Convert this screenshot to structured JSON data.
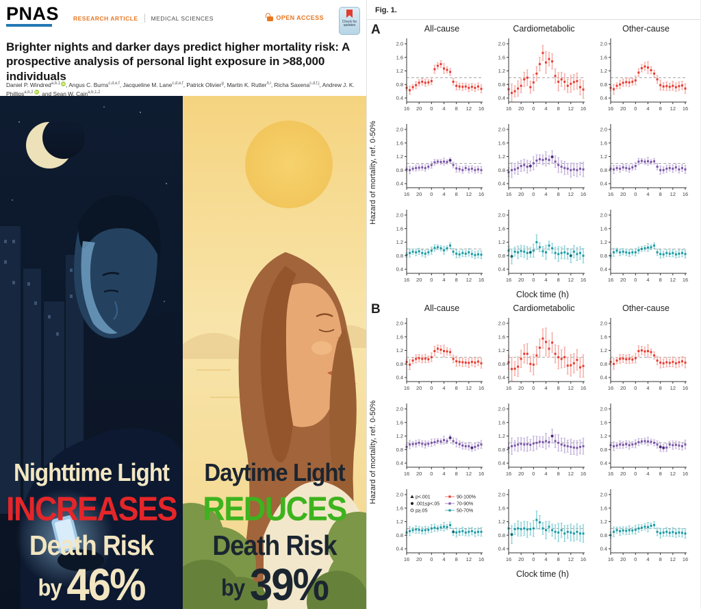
{
  "header": {
    "brand": "PNAS",
    "article_type": "RESEARCH ARTICLE",
    "section": "MEDICAL SCIENCES",
    "open_access": "OPEN ACCESS",
    "check_updates": "Check for updates"
  },
  "title": "Brighter nights and darker days predict higher mortality risk: A prospective analysis of personal light exposure in >88,000 individuals",
  "authors": [
    {
      "name": "Daniel P. Windred",
      "sup": "a,b,1",
      "orcid": true
    },
    {
      "name": "Angus C. Burns",
      "sup": "c,d,e,f"
    },
    {
      "name": "Jacqueline M. Lane",
      "sup": "c,d,e,f"
    },
    {
      "name": "Patrick Olivier",
      "sup": "g"
    },
    {
      "name": "Martin K. Rutter",
      "sup": "h,i"
    },
    {
      "name": "Richa Saxena",
      "sup": "c,d,f,j"
    },
    {
      "name": "Andrew J. K. Phillips",
      "sup": "a,b,2",
      "orcid": true
    },
    {
      "name": "Sean W. Cain",
      "sup": "a,b,1,2",
      "prefix": "and "
    }
  ],
  "infographic": {
    "night": {
      "line1": "Nighttime Light",
      "line2": "INCREASES",
      "line3": "Death Risk",
      "line4_prefix": "by ",
      "line4_value": "46%",
      "text_color": "#f2e6c2",
      "accent_color": "#e52629"
    },
    "day": {
      "line1": "Daytime Light",
      "line2": "REDUCES",
      "line3": "Death Risk",
      "line4_prefix": "by ",
      "line4_value": "39%",
      "text_color": "#1b2530",
      "accent_color": "#3db31e"
    }
  },
  "figure": {
    "label": "Fig. 1."
  },
  "chart_data": {
    "type": "scatter",
    "xlabel": "Clock time (h)",
    "ylabel": "Hazard of mortality, ref. 0-50%",
    "col_titles": [
      "All-cause",
      "Cardiometabolic",
      "Other-cause"
    ],
    "x_start": 16,
    "x_step": 1,
    "xticks": {
      "positions": [
        16,
        20,
        24,
        28,
        32,
        36,
        40
      ],
      "labels": [
        "16",
        "20",
        "0",
        "4",
        "8",
        "12",
        "16"
      ]
    },
    "yticks": [
      0.4,
      0.8,
      1.2,
      1.6,
      2.0
    ],
    "ylim": [
      0.28,
      2.12
    ],
    "ref_line": 1.0,
    "band_colors": {
      "90-100%": {
        "main": "#e93b31",
        "light": "#f6aca6",
        "dark": "#b0201c"
      },
      "70-90%": {
        "main": "#7a57a8",
        "light": "#c7b5de",
        "dark": "#492a78"
      },
      "50-70%": {
        "main": "#1d9aa3",
        "light": "#8fd3d8",
        "dark": "#0e6b74"
      }
    },
    "legend": {
      "shapes": [
        {
          "glyph": "triangle",
          "label": "p<.001"
        },
        {
          "glyph": "filled-circle",
          "label": ".001≤p<.05"
        },
        {
          "glyph": "open-circle",
          "label": "p≥.05"
        }
      ],
      "bands": [
        {
          "label": "90-100%"
        },
        {
          "label": "70-90%"
        },
        {
          "label": "50-70%"
        }
      ]
    },
    "panels": [
      {
        "label": "A",
        "rows": [
          {
            "band": "90-100%",
            "cells": [
              {
                "title": "All-cause",
                "err": 0.1,
                "values": [
                  0.7,
                  0.63,
                  0.72,
                  0.78,
                  0.85,
                  0.88,
                  0.85,
                  0.86,
                  0.9,
                  1.25,
                  1.35,
                  1.4,
                  1.27,
                  1.23,
                  1.17,
                  0.88,
                  0.76,
                  0.74,
                  0.73,
                  0.74,
                  0.7,
                  0.73,
                  0.7,
                  0.74,
                  0.67
                ]
              },
              {
                "title": "Cardiometabolic",
                "err": 0.22,
                "values": [
                  0.66,
                  0.55,
                  0.6,
                  0.68,
                  0.76,
                  0.95,
                  1.0,
                  0.72,
                  0.86,
                  1.12,
                  1.4,
                  1.73,
                  1.45,
                  1.55,
                  1.48,
                  1.05,
                  0.88,
                  0.95,
                  0.88,
                  0.76,
                  0.82,
                  0.87,
                  0.9,
                  0.72,
                  0.65
                ]
              },
              {
                "title": "Other-cause",
                "err": 0.12,
                "values": [
                  0.7,
                  0.66,
                  0.76,
                  0.8,
                  0.85,
                  0.87,
                  0.86,
                  0.88,
                  0.92,
                  1.15,
                  1.28,
                  1.33,
                  1.3,
                  1.22,
                  1.12,
                  0.95,
                  0.78,
                  0.74,
                  0.75,
                  0.73,
                  0.76,
                  0.72,
                  0.75,
                  0.77,
                  0.68
                ]
              }
            ]
          },
          {
            "band": "70-90%",
            "cells": [
              {
                "title": "All-cause",
                "err": 0.09,
                "dark": [
                  14
                ],
                "values": [
                  0.82,
                  0.8,
                  0.84,
                  0.86,
                  0.87,
                  0.88,
                  0.86,
                  0.9,
                  0.95,
                  1.03,
                  1.05,
                  1.04,
                  1.05,
                  1.04,
                  1.09,
                  0.95,
                  0.85,
                  0.83,
                  0.8,
                  0.86,
                  0.82,
                  0.84,
                  0.8,
                  0.82,
                  0.8
                ]
              },
              {
                "title": "Cardiometabolic",
                "err": 0.18,
                "dark": [
                  7,
                  14
                ],
                "values": [
                  0.74,
                  0.8,
                  0.82,
                  0.86,
                  0.92,
                  0.95,
                  0.9,
                  0.92,
                  1.0,
                  1.08,
                  1.12,
                  1.1,
                  1.13,
                  1.1,
                  1.19,
                  1.05,
                  0.95,
                  0.9,
                  0.86,
                  0.84,
                  0.8,
                  0.82,
                  0.8,
                  0.84,
                  0.82
                ]
              },
              {
                "title": "Other-cause",
                "err": 0.1,
                "values": [
                  0.84,
                  0.82,
                  0.86,
                  0.84,
                  0.88,
                  0.86,
                  0.84,
                  0.88,
                  0.92,
                  1.05,
                  1.07,
                  1.05,
                  1.06,
                  1.04,
                  1.06,
                  0.9,
                  0.8,
                  0.8,
                  0.84,
                  0.86,
                  0.84,
                  0.88,
                  0.82,
                  0.86,
                  0.82
                ]
              }
            ]
          },
          {
            "band": "50-70%",
            "cells": [
              {
                "title": "All-cause",
                "err": 0.1,
                "values": [
                  0.83,
                  0.88,
                  0.92,
                  0.9,
                  0.93,
                  0.88,
                  0.86,
                  0.9,
                  0.95,
                  1.03,
                  1.05,
                  1.02,
                  0.96,
                  1.02,
                  1.1,
                  0.92,
                  0.86,
                  0.84,
                  0.88,
                  0.86,
                  0.9,
                  0.85,
                  0.82,
                  0.84,
                  0.83
                ]
              },
              {
                "title": "Cardiometabolic",
                "err": 0.18,
                "dark": [
                  1,
                  7,
                  20
                ],
                "values": [
                  0.95,
                  0.78,
                  0.92,
                  0.9,
                  0.94,
                  0.92,
                  0.88,
                  0.9,
                  0.95,
                  1.2,
                  1.05,
                  0.93,
                  0.9,
                  1.1,
                  1.02,
                  0.88,
                  0.85,
                  0.88,
                  0.9,
                  0.86,
                  0.8,
                  0.92,
                  0.85,
                  0.88,
                  0.8
                ]
              },
              {
                "title": "Other-cause",
                "err": 0.1,
                "values": [
                  0.8,
                  0.9,
                  0.95,
                  0.9,
                  0.92,
                  0.9,
                  0.88,
                  0.9,
                  0.9,
                  0.96,
                  1.0,
                  1.02,
                  1.04,
                  1.05,
                  1.1,
                  0.9,
                  0.85,
                  0.84,
                  0.88,
                  0.86,
                  0.88,
                  0.84,
                  0.86,
                  0.88,
                  0.85
                ]
              }
            ]
          }
        ]
      },
      {
        "label": "B",
        "rows": [
          {
            "band": "90-100%",
            "cells": [
              {
                "title": "All-cause",
                "err": 0.12,
                "values": [
                  0.86,
                  0.78,
                  0.9,
                  0.95,
                  0.97,
                  0.95,
                  0.96,
                  0.94,
                  1.0,
                  1.18,
                  1.25,
                  1.22,
                  1.18,
                  1.17,
                  1.15,
                  0.95,
                  0.88,
                  0.86,
                  0.85,
                  0.84,
                  0.83,
                  0.86,
                  0.84,
                  0.87,
                  0.82
                ]
              },
              {
                "title": "Cardiometabolic",
                "err": 0.28,
                "values": [
                  0.85,
                  0.65,
                  0.66,
                  0.72,
                  0.95,
                  1.1,
                  1.1,
                  0.8,
                  0.78,
                  1.05,
                  1.28,
                  1.55,
                  1.45,
                  1.25,
                  1.43,
                  1.1,
                  1.0,
                  0.95,
                  1.0,
                  0.75,
                  0.76,
                  0.82,
                  0.92,
                  0.7,
                  0.74
                ]
              },
              {
                "title": "Other-cause",
                "err": 0.13,
                "values": [
                  0.86,
                  0.8,
                  0.9,
                  0.95,
                  0.96,
                  0.94,
                  0.95,
                  0.93,
                  0.97,
                  1.18,
                  1.2,
                  1.17,
                  1.18,
                  1.15,
                  1.05,
                  0.9,
                  0.84,
                  0.82,
                  0.85,
                  0.83,
                  0.86,
                  0.82,
                  0.85,
                  0.88,
                  0.84
                ]
              }
            ]
          },
          {
            "band": "70-90%",
            "cells": [
              {
                "title": "All-cause",
                "err": 0.1,
                "dark": [
                  14,
                  21
                ],
                "values": [
                  0.88,
                  0.95,
                  0.96,
                  0.97,
                  1.0,
                  0.97,
                  0.95,
                  0.97,
                  1.0,
                  1.02,
                  1.05,
                  1.04,
                  1.08,
                  1.05,
                  1.15,
                  1.05,
                  1.0,
                  0.96,
                  0.92,
                  0.9,
                  0.9,
                  0.85,
                  0.88,
                  0.92,
                  0.95
                ]
              },
              {
                "title": "Cardiometabolic",
                "err": 0.2,
                "dark": [
                  14
                ],
                "values": [
                  0.85,
                  0.9,
                  0.92,
                  0.95,
                  0.97,
                  0.95,
                  0.96,
                  0.94,
                  0.98,
                  1.0,
                  1.03,
                  1.02,
                  1.05,
                  1.02,
                  1.2,
                  1.05,
                  1.0,
                  0.95,
                  0.92,
                  0.9,
                  0.88,
                  0.86,
                  0.85,
                  0.88,
                  0.9
                ]
              },
              {
                "title": "Other-cause",
                "err": 0.11,
                "dark": [
                  16,
                  17
                ],
                "values": [
                  0.93,
                  0.9,
                  0.92,
                  0.95,
                  0.94,
                  0.96,
                  0.93,
                  0.95,
                  0.97,
                  1.02,
                  1.04,
                  1.05,
                  1.04,
                  1.03,
                  1.0,
                  0.95,
                  0.88,
                  0.85,
                  0.86,
                  0.95,
                  0.93,
                  0.94,
                  0.92,
                  0.9,
                  0.95
                ]
              }
            ]
          },
          {
            "band": "50-70%",
            "cells": [
              {
                "title": "All-cause",
                "err": 0.11,
                "legend": true,
                "dark": [
                  15
                ],
                "values": [
                  0.88,
                  0.92,
                  0.95,
                  0.97,
                  0.96,
                  0.94,
                  0.95,
                  0.96,
                  1.0,
                  1.02,
                  1.0,
                  1.03,
                  1.05,
                  1.04,
                  1.1,
                  0.9,
                  0.88,
                  0.9,
                  0.92,
                  0.88,
                  0.9,
                  0.92,
                  0.88,
                  0.9,
                  0.9
                ]
              },
              {
                "title": "Cardiometabolic",
                "err": 0.22,
                "dark": [
                  1
                ],
                "values": [
                  1.0,
                  0.82,
                  0.98,
                  1.0,
                  0.98,
                  1.0,
                  0.97,
                  0.98,
                  1.0,
                  1.25,
                  1.18,
                  1.0,
                  0.95,
                  1.05,
                  0.95,
                  0.9,
                  0.88,
                  0.95,
                  0.85,
                  0.9,
                  0.88,
                  0.85,
                  0.9,
                  0.85,
                  0.85
                ]
              },
              {
                "title": "Other-cause",
                "err": 0.12,
                "values": [
                  0.8,
                  0.9,
                  0.95,
                  0.92,
                  0.94,
                  0.93,
                  0.95,
                  0.94,
                  0.96,
                  1.0,
                  1.02,
                  1.05,
                  1.04,
                  1.08,
                  1.1,
                  0.9,
                  0.86,
                  0.88,
                  0.9,
                  0.87,
                  0.89,
                  0.86,
                  0.88,
                  0.87,
                  0.85
                ]
              }
            ]
          }
        ]
      }
    ]
  }
}
